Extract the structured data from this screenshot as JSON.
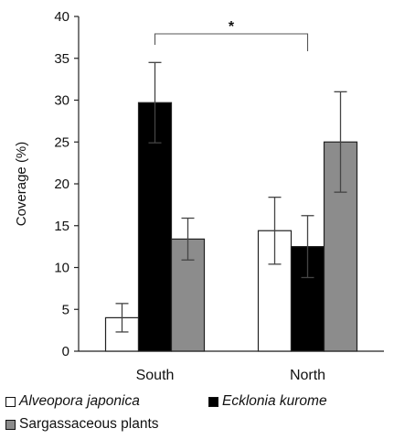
{
  "chart_data": {
    "type": "bar",
    "categories": [
      "South",
      "North"
    ],
    "series": [
      {
        "name": "Alveopora japonica",
        "values": [
          4.0,
          14.4
        ],
        "errors": [
          1.7,
          4.0
        ],
        "color": "#ffffff",
        "italic": true
      },
      {
        "name": "Ecklonia kurome",
        "values": [
          29.7,
          12.5
        ],
        "errors": [
          4.8,
          3.7
        ],
        "color": "#000000",
        "italic": true
      },
      {
        "name": "Sargassaceous plants",
        "values": [
          13.4,
          25.0
        ],
        "errors": [
          2.5,
          6.0
        ],
        "color": "#8c8c8c",
        "italic": false
      }
    ],
    "ylabel": "Coverage (%)",
    "ylim": [
      0,
      40
    ],
    "yticks": [
      0,
      5,
      10,
      15,
      20,
      25,
      30,
      35,
      40
    ],
    "annotation": {
      "text": "*",
      "from": "South: Ecklonia kurome",
      "to": "North: Ecklonia kurome"
    },
    "legend_position": "bottom"
  }
}
